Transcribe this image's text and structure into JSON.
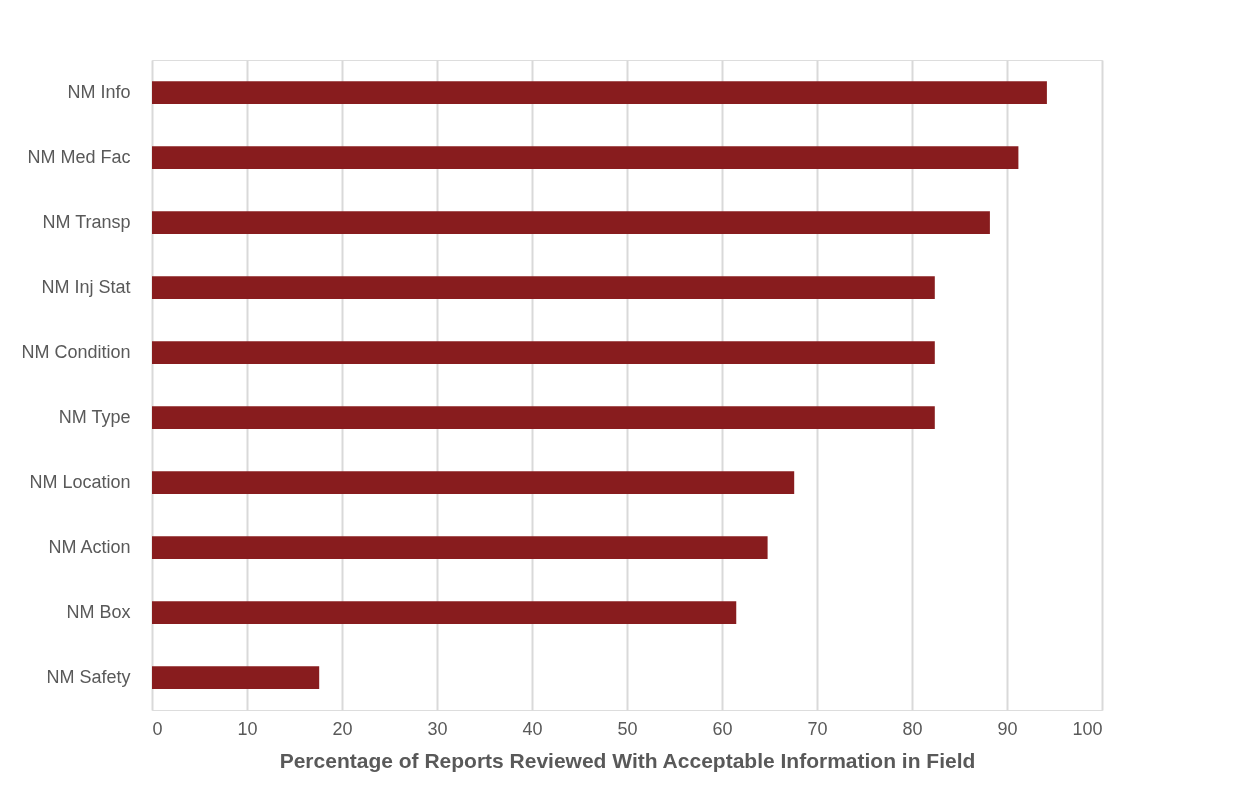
{
  "chart_data": {
    "type": "bar",
    "orientation": "horizontal",
    "xlabel": "Percentage of Reports Reviewed With Acceptable Information in Field",
    "categories": [
      "NM Info",
      "NM Med Fac",
      "NM Transp",
      "NM Inj Stat",
      "NM Condition",
      "NM Type",
      "NM Location",
      "NM Action",
      "NM Box",
      "NM Safety"
    ],
    "values": [
      94.2,
      91.2,
      88.2,
      82.4,
      82.4,
      82.4,
      67.6,
      64.8,
      61.5,
      17.6
    ],
    "color": "#881c1e",
    "xlim": [
      0,
      100
    ],
    "xticks": [
      0,
      10,
      20,
      30,
      40,
      50,
      60,
      70,
      80,
      90,
      100
    ],
    "grid": "x"
  }
}
